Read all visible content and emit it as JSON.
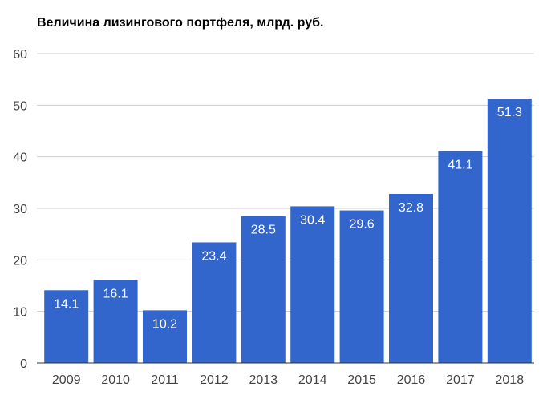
{
  "chart_data": {
    "type": "bar",
    "title": "Величина лизингового портфеля, млрд. руб.",
    "categories": [
      "2009",
      "2010",
      "2011",
      "2012",
      "2013",
      "2014",
      "2015",
      "2016",
      "2017",
      "2018"
    ],
    "values": [
      14.1,
      16.1,
      10.2,
      23.4,
      28.5,
      30.4,
      29.6,
      32.8,
      41.1,
      51.3
    ],
    "data_labels": [
      "14.1",
      "16.1",
      "10.2",
      "23.4",
      "28.5",
      "30.4",
      "29.6",
      "32.8",
      "41.1",
      "51.3"
    ],
    "yticks": [
      "0",
      "10",
      "20",
      "30",
      "40",
      "50",
      "60"
    ],
    "ylim": [
      0,
      60
    ],
    "grid": true,
    "legend": "none",
    "colors": {
      "bar": "#3366cc",
      "grid": "#cccccc",
      "axis": "#333333"
    }
  }
}
